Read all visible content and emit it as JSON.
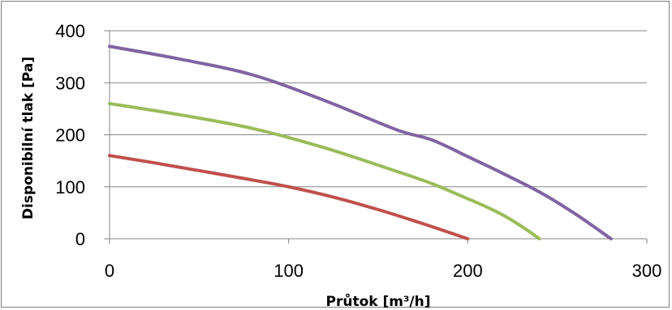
{
  "chart_data": {
    "type": "line",
    "title": "",
    "xlabel": "Průtok [m³/h]",
    "ylabel": "Disponibilní tlak [Pa]",
    "xlim": [
      0,
      300
    ],
    "ylim": [
      0,
      400
    ],
    "x_ticks": [
      0,
      100,
      200,
      300
    ],
    "y_ticks": [
      0,
      100,
      200,
      300,
      400
    ],
    "grid": "horizontal",
    "legend": "none",
    "series": [
      {
        "color": "#c0504d",
        "x": [
          0,
          25,
          50,
          75,
          100,
          125,
          150,
          175,
          200
        ],
        "y": [
          160,
          146,
          131,
          116,
          100,
          80,
          56,
          29,
          0
        ]
      },
      {
        "color": "#9bbb59",
        "x": [
          0,
          40,
          80,
          120,
          160,
          180,
          200,
          210,
          220,
          230,
          240
        ],
        "y": [
          260,
          238,
          212,
          175,
          130,
          106,
          77,
          62,
          45,
          24,
          0
        ]
      },
      {
        "color": "#8064a2",
        "x": [
          0,
          40,
          80,
          120,
          160,
          180,
          200,
          220,
          240,
          260,
          280
        ],
        "y": [
          370,
          345,
          315,
          266,
          210,
          190,
          158,
          125,
          90,
          48,
          0
        ]
      }
    ]
  }
}
